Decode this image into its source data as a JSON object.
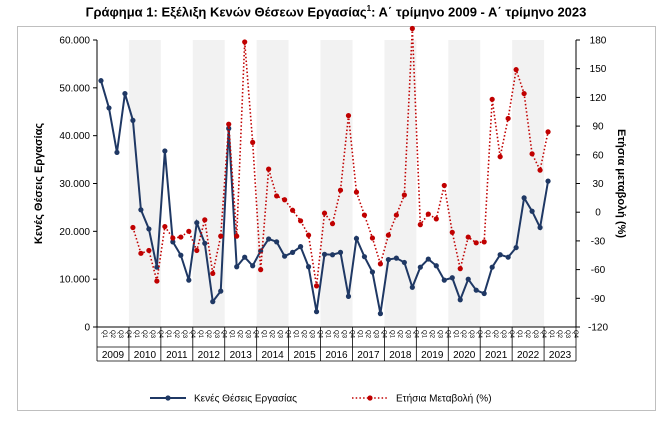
{
  "chart_data": {
    "type": "line",
    "title": "Γράφημα 1: Εξέλιξη Κενών Θέσεων Εργασίας",
    "title_sup": "1",
    "title_rest": ": Α΄ τρίμηνο 2009 - Α΄ τρίμηνο 2023",
    "ylabel": "Κενές Θέσεις Εργασίας",
    "y2label": "Ετήσια μεταβολή (%)",
    "ylim": [
      0,
      60000
    ],
    "y2lim": [
      -120,
      180
    ],
    "y_ticks": [
      "0",
      "10.000",
      "20.000",
      "30.000",
      "40.000",
      "50.000",
      "60.000"
    ],
    "y2_ticks": [
      "-120",
      "-90",
      "-60",
      "-30",
      "0",
      "30",
      "60",
      "90",
      "120",
      "150",
      "180"
    ],
    "quarters": [
      "Q1",
      "Q2",
      "Q3",
      "Q4"
    ],
    "years": [
      "2009",
      "2010",
      "2011",
      "2012",
      "2013",
      "2014",
      "2015",
      "2016",
      "2017",
      "2018",
      "2019",
      "2020",
      "2021",
      "2022",
      "2023"
    ],
    "categories": [
      "2009Q1",
      "2009Q2",
      "2009Q3",
      "2009Q4",
      "2010Q1",
      "2010Q2",
      "2010Q3",
      "2010Q4",
      "2011Q1",
      "2011Q2",
      "2011Q3",
      "2011Q4",
      "2012Q1",
      "2012Q2",
      "2012Q3",
      "2012Q4",
      "2013Q1",
      "2013Q2",
      "2013Q3",
      "2013Q4",
      "2014Q1",
      "2014Q2",
      "2014Q3",
      "2014Q4",
      "2015Q1",
      "2015Q2",
      "2015Q3",
      "2015Q4",
      "2016Q1",
      "2016Q2",
      "2016Q3",
      "2016Q4",
      "2017Q1",
      "2017Q2",
      "2017Q3",
      "2017Q4",
      "2018Q1",
      "2018Q2",
      "2018Q3",
      "2018Q4",
      "2019Q1",
      "2019Q2",
      "2019Q3",
      "2019Q4",
      "2020Q1",
      "2020Q2",
      "2020Q3",
      "2020Q4",
      "2021Q1",
      "2021Q2",
      "2021Q3",
      "2021Q4",
      "2022Q1",
      "2022Q2",
      "2022Q3",
      "2022Q4",
      "2023Q1"
    ],
    "series": [
      {
        "name": "Κενές Θέσεις Εργασίας",
        "axis": "left",
        "color": "#1f3864",
        "style": "solid",
        "values": [
          51500,
          45800,
          36500,
          48800,
          43200,
          24500,
          20500,
          12500,
          36800,
          17800,
          15000,
          9800,
          21800,
          17500,
          5300,
          7500,
          41500,
          12600,
          14600,
          12800,
          15900,
          18400,
          17800,
          14800,
          15600,
          16800,
          12600,
          3200,
          15200,
          15100,
          15600,
          6400,
          18500,
          14700,
          11500,
          2800,
          14100,
          14400,
          13500,
          8300,
          12500,
          14200,
          12800,
          9800,
          10300,
          5700,
          10000,
          7700,
          7000,
          12500,
          15100,
          14600,
          16600,
          27000,
          24200,
          20800,
          30500
        ]
      },
      {
        "name": "Ετήσια Μεταβολή (%)",
        "axis": "right",
        "color": "#c00000",
        "style": "dotted",
        "values": [
          null,
          null,
          null,
          null,
          -16,
          -43,
          -40,
          -72,
          -15,
          -27,
          -26,
          -20,
          -40,
          -8,
          -64,
          -25,
          92,
          -25,
          178,
          73,
          -60,
          45,
          17,
          13,
          2,
          -9,
          -24,
          -77,
          -1,
          -12,
          23,
          101,
          21,
          -3,
          -27,
          -54,
          -24,
          -3,
          18,
          192,
          -13,
          -2,
          -7,
          28,
          -21,
          -59,
          -26,
          -32,
          -31,
          118,
          58,
          98,
          149,
          124,
          61,
          44,
          84
        ]
      }
    ],
    "legend": {
      "position": "bottom"
    },
    "grid": false
  }
}
